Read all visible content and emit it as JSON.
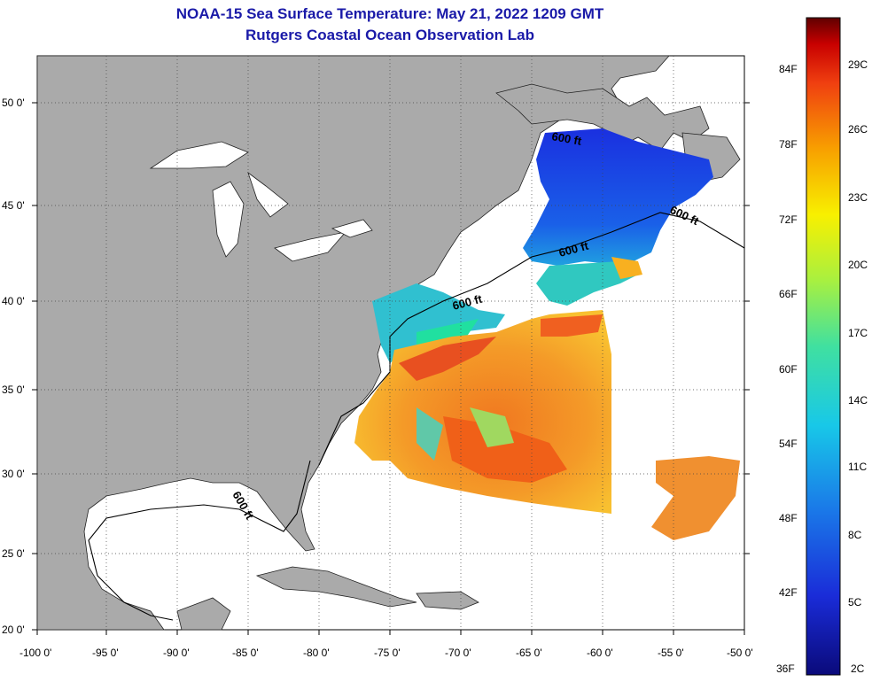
{
  "title": "NOAA-15 Sea Surface Temperature:  May 21, 2022 1209 GMT",
  "subtitle": "Rutgers Coastal Ocean Observation Lab",
  "lat_labels": [
    "50 0'",
    "45 0'",
    "40 0'",
    "35 0'",
    "30 0'",
    "25 0'",
    "20 0'"
  ],
  "lon_labels": [
    "-100 0'",
    "-95 0'",
    "-90 0'",
    "-85 0'",
    "-80 0'",
    "-75 0'",
    "-70 0'",
    "-65 0'",
    "-60 0'",
    "-55 0'",
    "-50 0'"
  ],
  "contour_label": "600 ft",
  "colorbar": {
    "fahrenheit": [
      "84F",
      "78F",
      "72F",
      "66F",
      "60F",
      "54F",
      "48F",
      "42F",
      "36F"
    ],
    "celsius": [
      "29C",
      "26C",
      "23C",
      "20C",
      "17C",
      "14C",
      "11C",
      "8C",
      "5C",
      "2C"
    ]
  },
  "colors": {
    "title": "#1a1aa8",
    "land": "#aaaaaa",
    "ocean_no_data": "#ffffff"
  }
}
